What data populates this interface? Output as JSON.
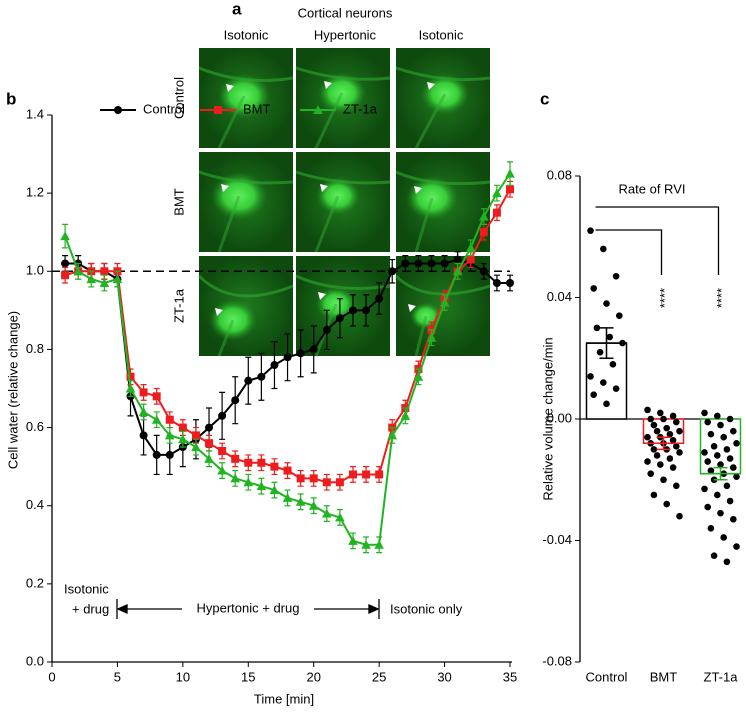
{
  "panel_a": {
    "label": "a",
    "title": "Cortical neurons",
    "columns": [
      "Isotonic",
      "Hypertonic",
      "Isotonic"
    ],
    "rows": [
      "Control",
      "BMT",
      "ZT-1a"
    ]
  },
  "chart_data": [
    {
      "type": "line",
      "panel": "b",
      "xlabel": "Time [min]",
      "ylabel": "Cell water (relative change)",
      "x": [
        1,
        2,
        3,
        4,
        5,
        6,
        7,
        8,
        9,
        10,
        11,
        12,
        13,
        14,
        15,
        16,
        17,
        18,
        19,
        20,
        21,
        22,
        23,
        24,
        25,
        26,
        27,
        28,
        29,
        30,
        31,
        32,
        33,
        34,
        35
      ],
      "series": [
        {
          "name": "Control",
          "color": "#000000",
          "marker": "circle",
          "values": [
            1.02,
            1.02,
            1.0,
            1.0,
            0.98,
            0.68,
            0.58,
            0.53,
            0.53,
            0.55,
            0.57,
            0.6,
            0.63,
            0.67,
            0.72,
            0.73,
            0.76,
            0.78,
            0.79,
            0.8,
            0.85,
            0.88,
            0.9,
            0.9,
            0.93,
            1.0,
            1.02,
            1.02,
            1.02,
            1.02,
            1.03,
            1.02,
            1.0,
            0.97,
            0.97
          ],
          "errors": [
            0.02,
            0.02,
            0.02,
            0.02,
            0.02,
            0.05,
            0.05,
            0.05,
            0.05,
            0.05,
            0.05,
            0.05,
            0.06,
            0.06,
            0.06,
            0.06,
            0.06,
            0.06,
            0.06,
            0.06,
            0.05,
            0.05,
            0.04,
            0.04,
            0.04,
            0.03,
            0.02,
            0.02,
            0.02,
            0.02,
            0.02,
            0.02,
            0.02,
            0.02,
            0.02
          ]
        },
        {
          "name": "BMT",
          "color": "#ee1c1c",
          "marker": "square",
          "values": [
            0.99,
            1.0,
            1.0,
            1.0,
            1.0,
            0.73,
            0.69,
            0.68,
            0.62,
            0.6,
            0.58,
            0.56,
            0.54,
            0.52,
            0.51,
            0.51,
            0.5,
            0.49,
            0.47,
            0.47,
            0.46,
            0.46,
            0.48,
            0.48,
            0.48,
            0.6,
            0.65,
            0.75,
            0.85,
            0.93,
            1.0,
            1.03,
            1.1,
            1.15,
            1.21
          ],
          "errors": [
            0.02,
            0.02,
            0.02,
            0.02,
            0.02,
            0.02,
            0.02,
            0.02,
            0.02,
            0.02,
            0.02,
            0.02,
            0.02,
            0.02,
            0.02,
            0.02,
            0.02,
            0.02,
            0.02,
            0.02,
            0.02,
            0.02,
            0.02,
            0.02,
            0.02,
            0.02,
            0.02,
            0.02,
            0.02,
            0.02,
            0.02,
            0.02,
            0.02,
            0.02,
            0.02
          ]
        },
        {
          "name": "ZT-1a",
          "color": "#22b322",
          "marker": "triangle",
          "values": [
            1.09,
            1.0,
            0.98,
            0.97,
            0.98,
            0.7,
            0.64,
            0.62,
            0.58,
            0.57,
            0.55,
            0.52,
            0.49,
            0.47,
            0.46,
            0.45,
            0.44,
            0.42,
            0.41,
            0.4,
            0.38,
            0.37,
            0.31,
            0.3,
            0.3,
            0.58,
            0.63,
            0.73,
            0.83,
            0.92,
            1.0,
            1.06,
            1.14,
            1.2,
            1.25
          ],
          "errors": [
            0.03,
            0.02,
            0.02,
            0.02,
            0.02,
            0.02,
            0.02,
            0.02,
            0.02,
            0.02,
            0.02,
            0.02,
            0.02,
            0.02,
            0.02,
            0.02,
            0.02,
            0.02,
            0.02,
            0.02,
            0.02,
            0.02,
            0.02,
            0.02,
            0.02,
            0.02,
            0.02,
            0.02,
            0.02,
            0.02,
            0.02,
            0.02,
            0.02,
            0.02,
            0.03
          ]
        }
      ],
      "xlim": [
        0,
        35
      ],
      "xticks": [
        0,
        5,
        10,
        15,
        20,
        25,
        30,
        35
      ],
      "ylim": [
        0,
        1.4
      ],
      "yticks": [
        {
          "value": 0,
          "label": "0.0"
        },
        {
          "value": 0.2,
          "label": "0.2"
        },
        {
          "value": 0.4,
          "label": "0.4"
        },
        {
          "value": 0.6,
          "label": "0.6"
        },
        {
          "value": 0.8,
          "label": "0.8"
        },
        {
          "value": 1,
          "label": "1.0"
        },
        {
          "value": 1.2,
          "label": "1.2"
        },
        {
          "value": 1.4,
          "label": "1.4"
        }
      ],
      "reference_line": 1,
      "legend": "top",
      "annotations": [
        "Isotonic",
        "+ drug",
        "Hypertonic + drug",
        "Isotonic only"
      ]
    },
    {
      "type": "bar",
      "panel": "c",
      "title": "Rate of RVI",
      "ylabel": "Relative volume change/min",
      "categories": [
        "Control",
        "BMT",
        "ZT-1a"
      ],
      "values": [
        0.025,
        -0.008,
        -0.018
      ],
      "errors": [
        0.005,
        0.002,
        0.002
      ],
      "colors": [
        "#000000",
        "#ee1c1c",
        "#22b322"
      ],
      "point_color": "#000000",
      "points": [
        [
          0.062,
          0.056,
          0.047,
          0.043,
          0.038,
          0.034,
          0.03,
          0.027,
          0.025,
          0.022,
          0.018,
          0.014,
          0.012,
          0.01,
          0.008,
          0.005
        ],
        [
          0.003,
          0.002,
          0.001,
          0,
          0,
          -0.001,
          -0.002,
          -0.003,
          -0.004,
          -0.004,
          -0.005,
          -0.006,
          -0.006,
          -0.007,
          -0.008,
          -0.008,
          -0.009,
          -0.01,
          -0.01,
          -0.011,
          -0.012,
          -0.013,
          -0.014,
          -0.015,
          -0.016,
          -0.018,
          -0.02,
          -0.022,
          -0.025,
          -0.028,
          -0.032
        ],
        [
          0.002,
          0.001,
          0,
          -0.001,
          -0.002,
          -0.004,
          -0.005,
          -0.006,
          -0.008,
          -0.009,
          -0.01,
          -0.011,
          -0.012,
          -0.013,
          -0.014,
          -0.015,
          -0.016,
          -0.017,
          -0.018,
          -0.019,
          -0.02,
          -0.022,
          -0.023,
          -0.025,
          -0.027,
          -0.029,
          -0.031,
          -0.033,
          -0.036,
          -0.039,
          -0.042,
          -0.045,
          -0.047
        ]
      ],
      "significance": [
        null,
        "****",
        "****"
      ],
      "ylim": [
        -0.08,
        0.08
      ],
      "yticks": [
        {
          "value": -0.08,
          "label": "-0.08"
        },
        {
          "value": -0.04,
          "label": "-0.04"
        },
        {
          "value": 0,
          "label": "0.00"
        },
        {
          "value": 0.04,
          "label": "0.04"
        },
        {
          "value": 0.08,
          "label": "0.08"
        }
      ]
    }
  ]
}
